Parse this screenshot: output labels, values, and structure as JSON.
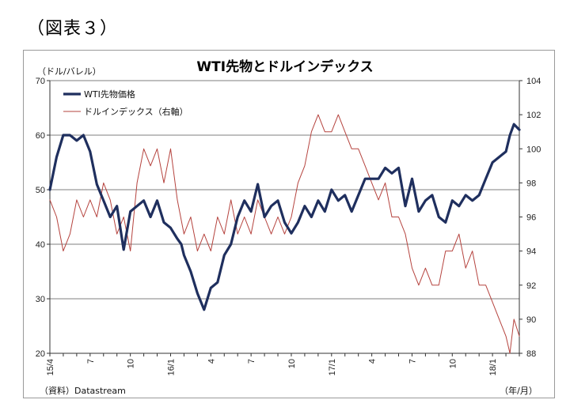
{
  "figure_label": "（図表３）",
  "chart_data": {
    "type": "line",
    "title": "WTI先物とドルインデックス",
    "ylabel_left": "（ドル/バレル）",
    "xlabel": "（年/月）",
    "source": "（資料）Datastream",
    "ylim_left": [
      20,
      70
    ],
    "yticks_left": [
      20,
      30,
      40,
      50,
      60,
      70
    ],
    "ylim_right": [
      88,
      104
    ],
    "yticks_right": [
      88,
      90,
      92,
      94,
      96,
      98,
      100,
      102,
      104
    ],
    "grid": true,
    "legend_position": "top-left",
    "x_tick_labels": [
      "15/4",
      "7",
      "10",
      "16/1",
      "4",
      "7",
      "10",
      "17/1",
      "4",
      "7",
      "10",
      "18/1"
    ],
    "series": [
      {
        "name": "WTI先物価格",
        "axis": "left",
        "color": "#1f2f5e",
        "x": [
          0.0,
          0.5,
          1.0,
          1.5,
          2.0,
          2.5,
          3.0,
          3.5,
          4.0,
          4.5,
          5.0,
          5.5,
          6.0,
          6.5,
          7.0,
          7.5,
          8.0,
          8.5,
          9.0,
          9.5,
          9.8,
          10.0,
          10.5,
          11.0,
          11.5,
          12.0,
          12.5,
          13.0,
          13.5,
          14.0,
          14.5,
          15.0,
          15.5,
          16.0,
          16.5,
          17.0,
          17.5,
          18.0,
          18.5,
          19.0,
          19.5,
          20.0,
          20.5,
          21.0,
          21.5,
          22.0,
          22.5,
          23.0,
          23.5,
          24.0,
          24.5,
          25.0,
          25.5,
          26.0,
          26.5,
          27.0,
          27.5,
          28.0,
          28.5,
          29.0,
          29.5,
          30.0,
          30.5,
          31.0,
          31.5,
          32.0,
          32.5,
          33.0,
          33.5,
          34.0,
          34.3,
          34.6,
          35.0
        ],
        "values": [
          50,
          56,
          60,
          60,
          59,
          60,
          57,
          51,
          48,
          45,
          47,
          39,
          46,
          47,
          48,
          45,
          48,
          44,
          43,
          41,
          40,
          38,
          35,
          31,
          28,
          32,
          33,
          38,
          40,
          45,
          48,
          46,
          51,
          45,
          47,
          48,
          44,
          42,
          44,
          47,
          45,
          48,
          46,
          50,
          48,
          49,
          46,
          49,
          52,
          52,
          52,
          54,
          53,
          54,
          47,
          52,
          46,
          48,
          49,
          45,
          44,
          48,
          47,
          49,
          48,
          49,
          52,
          55,
          56,
          57,
          60,
          62,
          61
        ]
      },
      {
        "name": "ドルインデックス（右軸）",
        "axis": "right",
        "color": "#b5433e",
        "x": [
          0.0,
          0.5,
          1.0,
          1.5,
          2.0,
          2.5,
          3.0,
          3.5,
          4.0,
          4.5,
          5.0,
          5.5,
          6.0,
          6.5,
          7.0,
          7.5,
          8.0,
          8.5,
          9.0,
          9.5,
          10.0,
          10.5,
          11.0,
          11.5,
          12.0,
          12.5,
          13.0,
          13.5,
          14.0,
          14.5,
          15.0,
          15.5,
          16.0,
          16.5,
          17.0,
          17.5,
          18.0,
          18.5,
          19.0,
          19.5,
          20.0,
          20.5,
          21.0,
          21.5,
          22.0,
          22.5,
          23.0,
          23.5,
          24.0,
          24.5,
          25.0,
          25.5,
          26.0,
          26.5,
          27.0,
          27.5,
          28.0,
          28.5,
          29.0,
          29.5,
          30.0,
          30.5,
          31.0,
          31.5,
          32.0,
          32.5,
          33.0,
          33.5,
          34.0,
          34.3,
          34.6,
          35.0
        ],
        "values": [
          97,
          96,
          94,
          95,
          97,
          96,
          97,
          96,
          98,
          97,
          95,
          96,
          94,
          98,
          100,
          99,
          100,
          98,
          100,
          97,
          95,
          96,
          94,
          95,
          94,
          96,
          95,
          97,
          95,
          96,
          95,
          97,
          96,
          95,
          96,
          95,
          96,
          98,
          99,
          101,
          102,
          101,
          101,
          102,
          101,
          100,
          100,
          99,
          98,
          97,
          98,
          96,
          96,
          95,
          93,
          92,
          93,
          92,
          92,
          94,
          94,
          95,
          93,
          94,
          92,
          92,
          91,
          90,
          89,
          88,
          90,
          89
        ]
      }
    ]
  }
}
